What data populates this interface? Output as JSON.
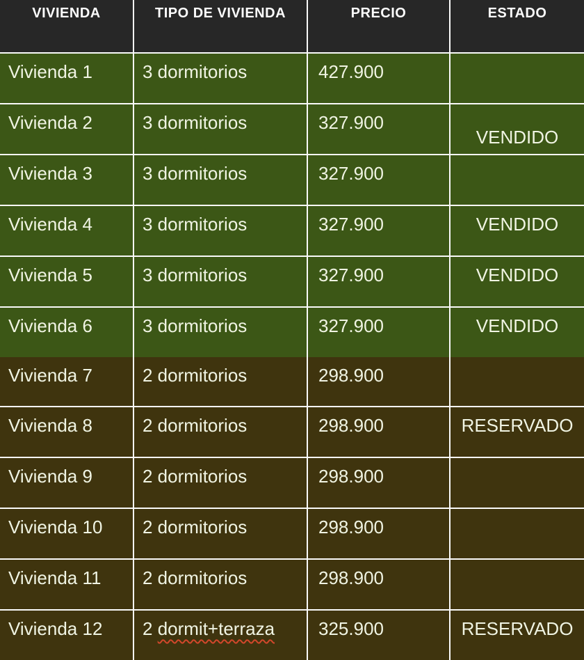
{
  "colors": {
    "header_bg": "#272727",
    "header_text": "#fcfcfc",
    "row_green_bg": "#3c5716",
    "row_brown_bg": "#3f340e",
    "cell_text": "#f0f4e3",
    "grid_line": "#fafafa",
    "squiggle": "#d2472b"
  },
  "table": {
    "columns": [
      {
        "id": "vivienda",
        "label": "VIVIENDA"
      },
      {
        "id": "tipo",
        "label": "TIPO DE VIVIENDA"
      },
      {
        "id": "precio",
        "label": "PRECIO"
      },
      {
        "id": "estado",
        "label": "ESTADO"
      }
    ],
    "rows": [
      {
        "vivienda": "Vivienda 1",
        "tipo": "3 dormitorios",
        "precio": "427.900",
        "estado": "",
        "group": "green"
      },
      {
        "vivienda": "Vivienda 2",
        "tipo": "3 dormitorios",
        "precio": "327.900",
        "estado": "VENDIDO",
        "estado_position": "bottom",
        "group": "green"
      },
      {
        "vivienda": "Vivienda 3",
        "tipo": "3 dormitorios",
        "precio": "327.900",
        "estado": "",
        "group": "green"
      },
      {
        "vivienda": "Vivienda 4",
        "tipo": "3 dormitorios",
        "precio": "327.900",
        "estado": "VENDIDO",
        "group": "green"
      },
      {
        "vivienda": "Vivienda 5",
        "tipo": "3 dormitorios",
        "precio": "327.900",
        "estado": "VENDIDO",
        "group": "green"
      },
      {
        "vivienda": "Vivienda 6",
        "tipo": "3 dormitorios",
        "precio": "327.900",
        "estado": "VENDIDO",
        "group": "green"
      },
      {
        "vivienda": "Vivienda 7",
        "tipo": "2 dormitorios",
        "precio": "298.900",
        "estado": "",
        "group": "brown"
      },
      {
        "vivienda": "Vivienda 8",
        "tipo": "2 dormitorios",
        "precio": "298.900",
        "estado": "RESERVADO",
        "group": "brown"
      },
      {
        "vivienda": "Vivienda 9",
        "tipo": "2 dormitorios",
        "precio": "298.900",
        "estado": "",
        "group": "brown"
      },
      {
        "vivienda": "Vivienda 10",
        "tipo": "2 dormitorios",
        "precio": "298.900",
        "estado": "",
        "group": "brown"
      },
      {
        "vivienda": "Vivienda 11",
        "tipo": "2 dormitorios",
        "precio": "298.900",
        "estado": "",
        "group": "brown"
      },
      {
        "vivienda": "Vivienda 12",
        "tipo_prefix": "2 ",
        "tipo_misspelled": "dormit+terraza",
        "precio": "325.900",
        "estado": "RESERVADO",
        "group": "brown"
      }
    ]
  }
}
